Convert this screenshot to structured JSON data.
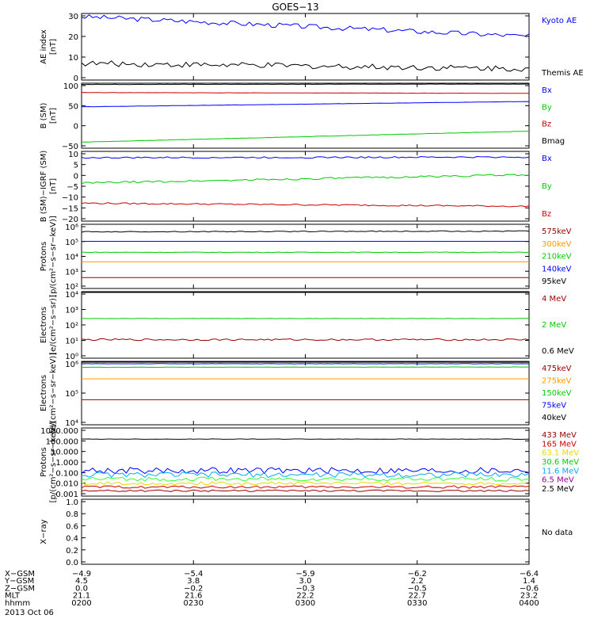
{
  "title": "GOES−13",
  "date": "2013 Oct 06",
  "colors": {
    "black": "#000000",
    "blue": "#0000ff",
    "red": "#cc0000",
    "green": "#00cc00",
    "orange": "#ff9900",
    "darkred": "#990000",
    "yellow": "#e8d800",
    "cyan": "#00aaff",
    "purple": "#990099",
    "brightgreen": "#33ff33"
  },
  "panels": [
    {
      "id": "ae",
      "ylabel": [
        "AE index",
        "[nT]"
      ],
      "ticks": [
        "30",
        "20",
        "10",
        "0"
      ],
      "legend": [
        {
          "text": "Kyoto AE",
          "color": "blue"
        },
        {
          "text": "Themis AE",
          "color": "black"
        }
      ]
    },
    {
      "id": "b-sm",
      "ylabel": [
        "B (SM)",
        "[nT]"
      ],
      "ticks": [
        "100",
        "50",
        "0",
        "−50"
      ],
      "legend": [
        {
          "text": "Bx",
          "color": "blue"
        },
        {
          "text": "By",
          "color": "green"
        },
        {
          "text": "Bz",
          "color": "red"
        },
        {
          "text": "Bmag",
          "color": "black"
        }
      ]
    },
    {
      "id": "b-igrf",
      "ylabel": [
        "B (SM)−IGRF (SM)",
        "[nT]"
      ],
      "ticks": [
        "10",
        "5",
        "0",
        "−5",
        "−10",
        "−15",
        "−20"
      ],
      "legend": [
        {
          "text": "Bx",
          "color": "blue"
        },
        {
          "text": "By",
          "color": "green"
        },
        {
          "text": "Bz",
          "color": "red"
        }
      ]
    },
    {
      "id": "protons-mev",
      "ylabel": [
        "Protons",
        "[p/(cm²−s−sr−keV)]"
      ],
      "ticks": [
        "10⁶",
        "10⁵",
        "10⁴",
        "10³",
        "10²"
      ],
      "legend": [
        {
          "text": "575keV",
          "color": "darkred"
        },
        {
          "text": "300keV",
          "color": "orange"
        },
        {
          "text": "210keV",
          "color": "green"
        },
        {
          "text": "140keV",
          "color": "blue"
        },
        {
          "text": "95keV",
          "color": "black"
        }
      ]
    },
    {
      "id": "electrons-mev",
      "ylabel": [
        "Electrons",
        "[e/(cm²−s−sr)]"
      ],
      "ticks": [
        "10⁴",
        "10³",
        "10²",
        "10¹",
        "10⁰"
      ],
      "legend": [
        {
          "text": "4 MeV",
          "color": "darkred"
        },
        {
          "text": "2 MeV",
          "color": "green"
        },
        {
          "text": "0.6 MeV",
          "color": "black"
        }
      ]
    },
    {
      "id": "electrons-kev",
      "ylabel": [
        "Electrons",
        "[e/(cm²−s−sr−keV)]"
      ],
      "ticks": [
        "10⁶",
        "10⁵",
        "10⁴"
      ],
      "legend": [
        {
          "text": "475keV",
          "color": "darkred"
        },
        {
          "text": "275keV",
          "color": "orange"
        },
        {
          "text": "150keV",
          "color": "green"
        },
        {
          "text": "75keV",
          "color": "blue"
        },
        {
          "text": "40keV",
          "color": "black"
        }
      ]
    },
    {
      "id": "protons-hi",
      "ylabel": [
        "Protons",
        "[p/(cm²−s−sr−keV)]"
      ],
      "ticks": [
        "1000.000",
        "100.000",
        "10.000",
        "1.000",
        "0.100",
        "0.010",
        "0.001"
      ],
      "legend": [
        {
          "text": "433 MeV",
          "color": "darkred"
        },
        {
          "text": "165 MeV",
          "color": "red"
        },
        {
          "text": "63.1 MeV",
          "color": "yellow"
        },
        {
          "text": "30.6 MeV",
          "color": "green"
        },
        {
          "text": "11.6 MeV",
          "color": "cyan"
        },
        {
          "text": "6.5 MeV",
          "color": "purple"
        },
        {
          "text": "2.5 MeV",
          "color": "black"
        }
      ]
    },
    {
      "id": "xray",
      "ylabel": [
        "X−ray",
        ""
      ],
      "ticks": [
        "1.0",
        "0.8",
        "0.6",
        "0.4",
        "0.2",
        "0.0"
      ],
      "legend": [
        {
          "text": "No data",
          "color": "black"
        }
      ]
    }
  ],
  "axis_table": {
    "rows": [
      {
        "label": "X−GSM",
        "values": [
          "−4.9",
          "−5.4",
          "−5.9",
          "−6.2",
          "−6.4"
        ]
      },
      {
        "label": "Y−GSM",
        "values": [
          "4.5",
          "3.8",
          "3.0",
          "2.2",
          "1.4"
        ]
      },
      {
        "label": "Z−GSM",
        "values": [
          "0.0",
          "−0.2",
          "−0.3",
          "−0.5",
          "−0.6"
        ]
      },
      {
        "label": "MLT",
        "values": [
          "21.1",
          "21.6",
          "22.2",
          "22.7",
          "23.2"
        ]
      },
      {
        "label": "hhmm",
        "values": [
          "0200",
          "0230",
          "0300",
          "0330",
          "0400"
        ]
      }
    ]
  },
  "chart_data": [
    {
      "type": "line",
      "panel": "ae",
      "ylim": [
        0,
        32
      ],
      "x": [
        "0200",
        "0400"
      ],
      "series": [
        {
          "name": "Kyoto AE",
          "color": "blue",
          "start": 30.5,
          "end": 21.0,
          "noise": 1.2
        },
        {
          "name": "Themis AE",
          "color": "black",
          "start": 8.0,
          "end": 5.5,
          "noise": 1.4
        }
      ]
    },
    {
      "type": "line",
      "panel": "b-sm",
      "ylim": [
        -55,
        105
      ],
      "x": [
        "0200",
        "0400"
      ],
      "series": [
        {
          "name": "Bmag",
          "color": "black",
          "start": 102,
          "end": 103,
          "noise": 0.4
        },
        {
          "name": "Bz",
          "color": "red",
          "start": 82,
          "end": 80,
          "noise": 0.3
        },
        {
          "name": "Bx",
          "color": "blue",
          "start": 47,
          "end": 60,
          "noise": 0.3
        },
        {
          "name": "By",
          "color": "green",
          "start": -40,
          "end": -13,
          "noise": 0.4
        }
      ]
    },
    {
      "type": "line",
      "panel": "b-igrf",
      "ylim": [
        -22,
        11
      ],
      "x": [
        "0200",
        "0400"
      ],
      "series": [
        {
          "name": "Bx",
          "color": "blue",
          "start": 8.0,
          "end": 8.3,
          "noise": 0.35
        },
        {
          "name": "By",
          "color": "green",
          "start": -4.0,
          "end": 0.0,
          "noise": 0.45
        },
        {
          "name": "Bz",
          "color": "red",
          "start": -13.5,
          "end": -15.0,
          "noise": 0.35
        }
      ]
    },
    {
      "type": "line",
      "panel": "protons-mev",
      "yscale": "log",
      "ylim": [
        1.5,
        6.2
      ],
      "x": [
        "0200",
        "0400"
      ],
      "series": [
        {
          "name": "95keV",
          "color": "black",
          "start": 5.65,
          "end": 5.7,
          "noise": 0.03
        },
        {
          "name": "140keV",
          "color": "blue",
          "start": 4.95,
          "end": 4.95,
          "noise": 0.0
        },
        {
          "name": "210keV",
          "color": "green",
          "start": 4.15,
          "end": 4.15,
          "noise": 0.02
        },
        {
          "name": "300keV",
          "color": "orange",
          "start": 3.45,
          "end": 3.45,
          "noise": 0.0
        },
        {
          "name": "575keV",
          "color": "darkred",
          "start": 2.3,
          "end": 2.3,
          "noise": 0.0
        }
      ]
    },
    {
      "type": "line",
      "panel": "electrons-mev",
      "yscale": "log",
      "ylim": [
        -0.4,
        4.8
      ],
      "x": [
        "0200",
        "0400"
      ],
      "series": [
        {
          "name": "0.6 MeV",
          "color": "black",
          "start": 4.9,
          "end": 4.9,
          "noise": 0.0
        },
        {
          "name": "2 MeV",
          "color": "green",
          "start": 2.7,
          "end": 2.7,
          "noise": 0.01
        },
        {
          "name": "4 MeV",
          "color": "darkred",
          "start": 1.05,
          "end": 1.05,
          "noise": 0.07
        }
      ]
    },
    {
      "type": "line",
      "panel": "electrons-kev",
      "yscale": "log",
      "ylim": [
        3.9,
        6.05
      ],
      "x": [
        "0200",
        "0400"
      ],
      "series": [
        {
          "name": "40keV",
          "color": "black",
          "start": 6.03,
          "end": 6.02,
          "noise": 0.0
        },
        {
          "name": "75keV",
          "color": "blue",
          "start": 5.97,
          "end": 5.97,
          "noise": 0.005
        },
        {
          "name": "150keV",
          "color": "green",
          "start": 5.85,
          "end": 5.86,
          "noise": 0.005
        },
        {
          "name": "275keV",
          "color": "orange",
          "start": 5.46,
          "end": 5.46,
          "noise": 0.0
        },
        {
          "name": "475keV",
          "color": "darkred",
          "start": 4.75,
          "end": 4.75,
          "noise": 0.0
        }
      ]
    },
    {
      "type": "line",
      "panel": "protons-hi",
      "yscale": "log",
      "ylim": [
        -3.3,
        3.1
      ],
      "x": [
        "0200",
        "0400"
      ],
      "series": [
        {
          "name": "2.5 MeV",
          "color": "black",
          "start": 2.05,
          "end": 2.05,
          "noise": 0.02
        },
        {
          "name": "6.5 MeV",
          "color": "blue",
          "start": -0.9,
          "end": -0.9,
          "noise": 0.3
        },
        {
          "name": "11.6 MeV",
          "color": "cyan",
          "start": -1.3,
          "end": -1.3,
          "noise": 0.25
        },
        {
          "name": "30.6 MeV",
          "color": "brightgreen",
          "start": -1.7,
          "end": -1.7,
          "noise": 0.2
        },
        {
          "name": "63.1 MeV",
          "color": "yellow",
          "start": -2.1,
          "end": -2.1,
          "noise": 0.15
        },
        {
          "name": "165 MeV",
          "color": "red",
          "start": -2.45,
          "end": -2.45,
          "noise": 0.12
        },
        {
          "name": "433 MeV",
          "color": "darkred",
          "start": -2.8,
          "end": -2.8,
          "noise": 0.08
        }
      ]
    }
  ]
}
